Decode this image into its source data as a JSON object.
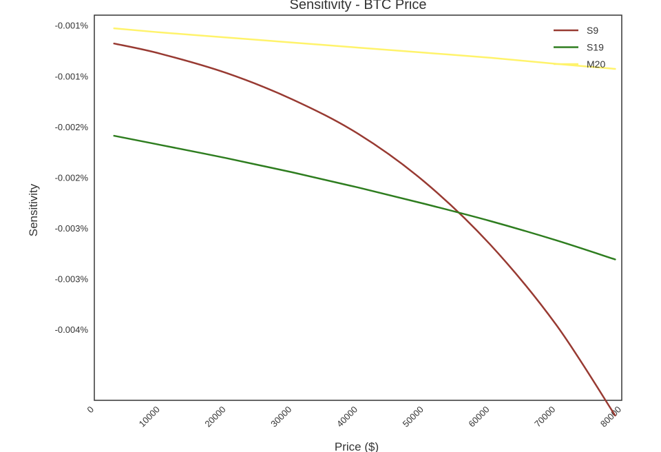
{
  "chart_data": {
    "type": "line",
    "title": "Sensitivity - BTC Price",
    "xlabel": "Price ($)",
    "ylabel": "Sensitivity",
    "xlim": [
      0,
      80000
    ],
    "ylim": [
      -0.0044,
      -0.0006
    ],
    "xticks": [
      0,
      10000,
      20000,
      30000,
      40000,
      50000,
      60000,
      70000,
      80000
    ],
    "xtick_labels": [
      "0",
      "10000",
      "20000",
      "30000",
      "40000",
      "50000",
      "60000",
      "70000",
      "80000"
    ],
    "yticks": [
      -0.0007,
      -0.0012,
      -0.0017,
      -0.0022,
      -0.0027,
      -0.0032,
      -0.0037
    ],
    "ytick_labels": [
      "-0.001%",
      "-0.001%",
      "-0.002%",
      "-0.002%",
      "-0.003%",
      "-0.003%",
      "-0.004%"
    ],
    "grid": false,
    "legend_position": "top-right",
    "series": [
      {
        "name": "S9",
        "color": "#983a32",
        "x": [
          3000,
          10000,
          20000,
          30000,
          40000,
          50000,
          60000,
          70000,
          79000
        ],
        "y": [
          -0.00088,
          -0.00098,
          -0.00117,
          -0.00143,
          -0.00177,
          -0.00224,
          -0.00286,
          -0.00365,
          -0.00455
        ]
      },
      {
        "name": "S19",
        "color": "#2e7d1f",
        "x": [
          3000,
          10000,
          20000,
          30000,
          40000,
          50000,
          60000,
          70000,
          79000
        ],
        "y": [
          -0.00179,
          -0.00188,
          -0.00201,
          -0.00215,
          -0.0023,
          -0.00246,
          -0.00263,
          -0.00282,
          -0.00301
        ]
      },
      {
        "name": "M20",
        "color": "#fff36b",
        "x": [
          3000,
          10000,
          20000,
          30000,
          40000,
          50000,
          60000,
          70000,
          79000
        ],
        "y": [
          -0.00073,
          -0.00077,
          -0.00082,
          -0.00087,
          -0.00092,
          -0.00097,
          -0.00102,
          -0.00108,
          -0.00113
        ]
      }
    ]
  }
}
